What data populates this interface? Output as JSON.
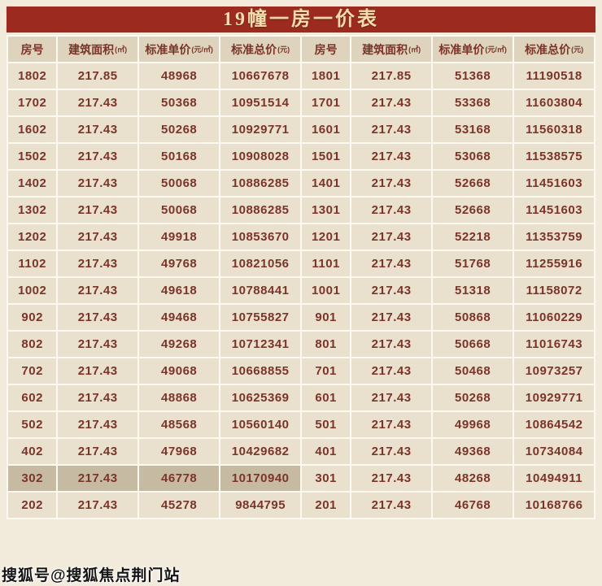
{
  "title": "19幢一房一价表",
  "watermark": "搜狐号@搜狐焦点荆门站",
  "colors": {
    "title_bg": "#9d2a1e",
    "title_text": "#f3dfae",
    "page_bg": "#f2ebdc",
    "header_bg": "#ded3bd",
    "cell_bg": "#e9e0cd",
    "highlight_bg": "#c7baa2",
    "text": "#7c342a",
    "grid": "#fcf9f1"
  },
  "table": {
    "headers": [
      {
        "label": "房号",
        "unit": ""
      },
      {
        "label": "建筑面积",
        "unit": "(㎡)"
      },
      {
        "label": "标准单价",
        "unit": "(元/㎡)"
      },
      {
        "label": "标准总价",
        "unit": "(元)"
      },
      {
        "label": "房号",
        "unit": ""
      },
      {
        "label": "建筑面积",
        "unit": "(㎡)"
      },
      {
        "label": "标准单价",
        "unit": "(元/㎡)"
      },
      {
        "label": "标准总价",
        "unit": "(元)"
      }
    ],
    "highlight": {
      "row": 15,
      "cols": [
        0,
        1,
        2,
        3
      ]
    },
    "rows": [
      [
        "1802",
        "217.85",
        "48968",
        "10667678",
        "1801",
        "217.85",
        "51368",
        "11190518"
      ],
      [
        "1702",
        "217.43",
        "50368",
        "10951514",
        "1701",
        "217.43",
        "53368",
        "11603804"
      ],
      [
        "1602",
        "217.43",
        "50268",
        "10929771",
        "1601",
        "217.43",
        "53168",
        "11560318"
      ],
      [
        "1502",
        "217.43",
        "50168",
        "10908028",
        "1501",
        "217.43",
        "53068",
        "11538575"
      ],
      [
        "1402",
        "217.43",
        "50068",
        "10886285",
        "1401",
        "217.43",
        "52668",
        "11451603"
      ],
      [
        "1302",
        "217.43",
        "50068",
        "10886285",
        "1301",
        "217.43",
        "52668",
        "11451603"
      ],
      [
        "1202",
        "217.43",
        "49918",
        "10853670",
        "1201",
        "217.43",
        "52218",
        "11353759"
      ],
      [
        "1102",
        "217.43",
        "49768",
        "10821056",
        "1101",
        "217.43",
        "51768",
        "11255916"
      ],
      [
        "1002",
        "217.43",
        "49618",
        "10788441",
        "1001",
        "217.43",
        "51318",
        "11158072"
      ],
      [
        "902",
        "217.43",
        "49468",
        "10755827",
        "901",
        "217.43",
        "50868",
        "11060229"
      ],
      [
        "802",
        "217.43",
        "49268",
        "10712341",
        "801",
        "217.43",
        "50668",
        "11016743"
      ],
      [
        "702",
        "217.43",
        "49068",
        "10668855",
        "701",
        "217.43",
        "50468",
        "10973257"
      ],
      [
        "602",
        "217.43",
        "48868",
        "10625369",
        "601",
        "217.43",
        "50268",
        "10929771"
      ],
      [
        "502",
        "217.43",
        "48568",
        "10560140",
        "501",
        "217.43",
        "49968",
        "10864542"
      ],
      [
        "402",
        "217.43",
        "47968",
        "10429682",
        "401",
        "217.43",
        "49368",
        "10734084"
      ],
      [
        "302",
        "217.43",
        "46778",
        "10170940",
        "301",
        "217.43",
        "48268",
        "10494911"
      ],
      [
        "202",
        "217.43",
        "45278",
        "9844795",
        "201",
        "217.43",
        "46768",
        "10168766"
      ]
    ]
  }
}
